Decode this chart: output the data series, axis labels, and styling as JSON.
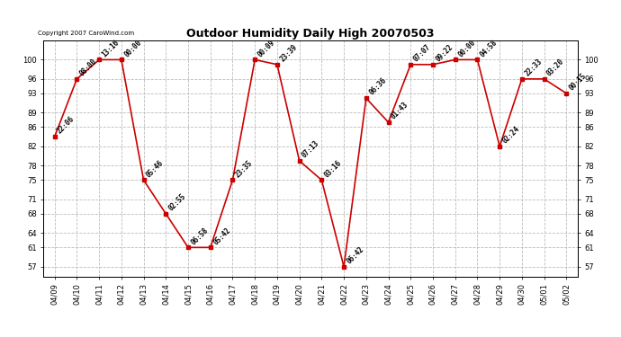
{
  "title": "Outdoor Humidity Daily High 20070503",
  "copyright": "Copyright 2007 CaroWind.com",
  "x_labels": [
    "04/09",
    "04/10",
    "04/11",
    "04/12",
    "04/13",
    "04/14",
    "04/15",
    "04/16",
    "04/17",
    "04/18",
    "04/19",
    "04/20",
    "04/21",
    "04/22",
    "04/23",
    "04/24",
    "04/25",
    "04/26",
    "04/27",
    "04/28",
    "04/29",
    "04/30",
    "05/01",
    "05/02"
  ],
  "y_values": [
    84,
    96,
    100,
    100,
    75,
    68,
    61,
    61,
    75,
    100,
    99,
    79,
    75,
    57,
    92,
    87,
    99,
    99,
    100,
    100,
    82,
    96,
    96,
    93
  ],
  "time_labels": [
    "22:06",
    "08:00",
    "13:16",
    "00:00",
    "05:46",
    "02:55",
    "06:58",
    "05:42",
    "23:35",
    "00:09",
    "23:39",
    "07:13",
    "03:16",
    "06:42",
    "06:36",
    "01:43",
    "07:07",
    "09:22",
    "00:00",
    "04:58",
    "02:24",
    "22:33",
    "03:20",
    "00:15"
  ],
  "yticks": [
    57,
    61,
    64,
    68,
    71,
    75,
    78,
    82,
    86,
    89,
    93,
    96,
    100
  ],
  "ylim": [
    55,
    104
  ],
  "xlim": [
    -0.5,
    23.5
  ],
  "line_color": "#cc0000",
  "marker_color": "#cc0000",
  "background_color": "#ffffff",
  "grid_color": "#bbbbbb",
  "title_fontsize": 9,
  "label_fontsize": 5.5,
  "tick_fontsize": 6,
  "copyright_fontsize": 5
}
